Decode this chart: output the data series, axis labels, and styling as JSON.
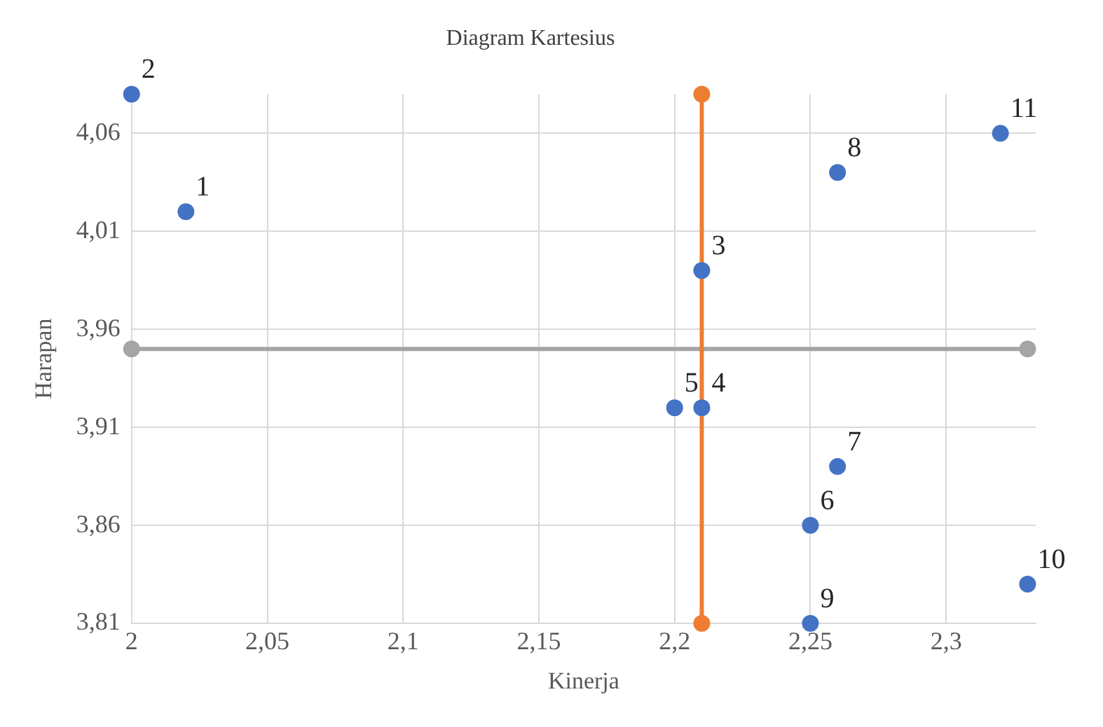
{
  "chart_data": {
    "type": "scatter",
    "title": "Diagram Kartesius",
    "xlabel": "Kinerja",
    "ylabel": "Harapan",
    "xlim": [
      2,
      2.333
    ],
    "ylim": [
      3.81,
      4.08
    ],
    "xticks": [
      2,
      {
        "value": 2.05,
        "label": "2,05"
      },
      {
        "value": 2.1,
        "label": "2,1"
      },
      {
        "value": 2.15,
        "label": "2,15"
      },
      {
        "value": 2.2,
        "label": "2,2"
      },
      {
        "value": 2.25,
        "label": "2,25"
      },
      {
        "value": 2.3,
        "label": "2,3"
      }
    ],
    "yticks": [
      {
        "value": 3.81,
        "label": "3,81"
      },
      {
        "value": 3.86,
        "label": "3,86"
      },
      {
        "value": 3.91,
        "label": "3,91"
      },
      {
        "value": 3.96,
        "label": "3,96"
      },
      {
        "value": 4.01,
        "label": "4,01"
      },
      {
        "value": 4.06,
        "label": "4,06"
      }
    ],
    "grid": true,
    "legend": false,
    "marker": "circle",
    "series": [
      {
        "type": "scatter",
        "color": "#4472c4",
        "x": [
          2.02,
          2,
          2.21,
          2.21,
          2.2,
          2.25,
          2.26,
          2.26,
          2.25,
          2.33,
          2.32
        ],
        "values": [
          4.02,
          4.08,
          3.99,
          3.92,
          3.92,
          3.86,
          3.89,
          4.04,
          3.81,
          3.83,
          4.06
        ]
      },
      {
        "type": "line",
        "color": "#ed7d31",
        "x": [
          2.21,
          2.21
        ],
        "values": [
          3.81,
          4.08
        ]
      },
      {
        "type": "line",
        "color": "#a5a5a5",
        "x": [
          2,
          2.33
        ],
        "values": [
          3.95,
          3.95
        ]
      }
    ],
    "annotations": [
      {
        "text": "1",
        "x": 2.02,
        "y": 4.02
      },
      {
        "text": "2",
        "x": 2,
        "y": 4.08
      },
      {
        "text": "3",
        "x": 2.21,
        "y": 3.99
      },
      {
        "text": "4",
        "x": 2.21,
        "y": 3.92
      },
      {
        "text": "5",
        "x": 2.2,
        "y": 3.92
      },
      {
        "text": "6",
        "x": 2.25,
        "y": 3.86
      },
      {
        "text": "7",
        "x": 2.26,
        "y": 3.89
      },
      {
        "text": "8",
        "x": 2.26,
        "y": 4.04
      },
      {
        "text": "9",
        "x": 2.25,
        "y": 3.81
      },
      {
        "text": "10",
        "x": 2.33,
        "y": 3.83
      },
      {
        "text": "11",
        "x": 2.32,
        "y": 4.06
      }
    ]
  }
}
